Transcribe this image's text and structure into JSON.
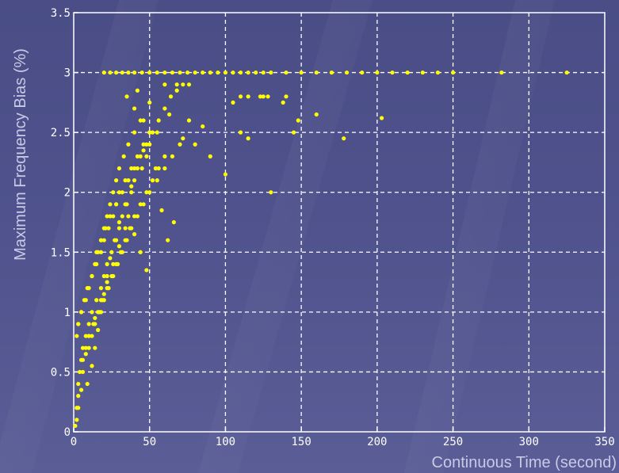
{
  "chart_data": {
    "type": "scatter",
    "title": "",
    "xlabel": "Continuous  Time (second)",
    "ylabel": "Maximum Frequency Bias (%)",
    "xlim": [
      0,
      350
    ],
    "ylim": [
      0,
      3.5
    ],
    "xticks": [
      0,
      50,
      100,
      150,
      200,
      250,
      300,
      350
    ],
    "yticks": [
      0,
      0.5,
      1,
      1.5,
      2,
      2.5,
      3,
      3.5
    ],
    "xtick_labels": [
      "0",
      "50",
      "100",
      "150",
      "200",
      "250",
      "300",
      "350"
    ],
    "ytick_labels": [
      "0",
      "0.5",
      "1",
      "1.5",
      "2",
      "2.5",
      "3",
      "3.5"
    ],
    "grid": true,
    "colors": {
      "points": "#ffff00",
      "grid": "#ffffff",
      "axes": "#ffffff"
    },
    "series": [
      {
        "x": [
          1,
          2,
          2,
          3,
          3,
          4,
          5,
          6,
          8,
          10,
          12,
          15,
          18,
          20,
          22,
          25,
          28,
          30,
          32,
          35,
          38,
          40,
          45,
          48,
          50,
          2,
          3,
          5,
          7,
          9,
          12,
          14,
          16,
          18,
          20,
          22,
          24,
          26,
          28,
          30,
          33,
          36,
          40,
          44,
          3,
          5,
          8,
          10,
          12,
          15,
          18,
          20,
          23,
          26,
          28,
          30,
          34,
          38,
          42,
          46,
          50,
          6,
          8,
          10,
          13,
          16,
          19,
          22,
          25,
          28,
          31,
          34,
          37,
          40,
          44,
          48,
          52,
          56,
          60,
          10,
          12,
          14,
          17,
          20,
          23,
          26,
          29,
          32,
          35,
          38,
          42,
          46,
          50,
          55,
          60,
          65,
          70,
          15,
          18,
          21,
          24,
          28,
          32,
          36,
          40,
          44,
          48,
          52,
          56,
          60,
          64,
          68,
          72,
          76,
          20,
          24,
          28,
          32,
          36,
          40,
          45,
          50,
          55,
          60,
          65,
          70,
          75,
          80,
          85,
          90,
          95,
          100,
          105,
          110,
          115,
          120,
          125,
          130,
          140,
          150,
          160,
          170,
          180,
          190,
          200,
          210,
          220,
          230,
          240,
          250,
          282,
          325,
          35,
          40,
          42,
          46,
          50,
          55,
          60,
          63,
          68,
          72,
          76,
          80,
          85,
          90,
          105,
          110,
          115,
          123,
          125,
          128,
          138,
          140,
          9,
          12,
          14,
          16,
          18,
          20,
          22,
          24,
          27,
          30,
          34,
          38,
          42,
          46,
          50,
          54,
          58,
          62,
          66,
          100,
          110,
          115,
          130,
          145,
          148,
          160,
          178,
          203,
          3,
          5,
          6,
          8,
          10,
          14,
          18,
          22,
          26,
          30,
          34,
          36,
          40,
          44,
          48
        ],
        "y": [
          0.05,
          0.1,
          0.2,
          0.3,
          0.4,
          0.5,
          0.6,
          0.7,
          0.8,
          0.9,
          1.0,
          1.1,
          1.2,
          1.3,
          1.4,
          1.5,
          1.6,
          1.7,
          1.8,
          1.9,
          2.0,
          2.1,
          2.2,
          2.3,
          2.4,
          0.8,
          0.9,
          1.0,
          1.1,
          1.2,
          1.3,
          1.4,
          1.5,
          1.6,
          1.7,
          1.8,
          1.9,
          2.0,
          2.1,
          2.2,
          2.3,
          2.4,
          2.5,
          2.6,
          0.9,
          1.0,
          1.1,
          1.2,
          1.3,
          1.4,
          1.5,
          1.6,
          1.7,
          1.8,
          1.9,
          2.0,
          2.1,
          2.2,
          2.3,
          2.4,
          2.5,
          0.6,
          0.7,
          0.8,
          0.9,
          1.0,
          1.1,
          1.2,
          1.3,
          1.4,
          1.5,
          1.6,
          1.7,
          1.8,
          1.9,
          2.0,
          2.1,
          2.2,
          2.3,
          0.7,
          0.8,
          0.9,
          1.0,
          1.1,
          1.2,
          1.3,
          1.4,
          1.5,
          1.6,
          1.7,
          1.8,
          1.9,
          2.0,
          2.1,
          2.2,
          2.3,
          2.4,
          1.5,
          1.6,
          1.7,
          1.8,
          1.9,
          2.0,
          2.1,
          2.2,
          2.3,
          2.4,
          2.5,
          2.6,
          2.7,
          2.8,
          2.9,
          2.9,
          2.9,
          3.0,
          3.0,
          3.0,
          3.0,
          3.0,
          3.0,
          3.0,
          3.0,
          3.0,
          3.0,
          3.0,
          3.0,
          3.0,
          3.0,
          3.0,
          3.0,
          3.0,
          3.0,
          3.0,
          3.0,
          3.0,
          3.0,
          3.0,
          3.0,
          3.0,
          3.0,
          3.0,
          3.0,
          3.0,
          3.0,
          3.0,
          3.0,
          3.0,
          3.0,
          3.0,
          3.0,
          3.0,
          3.0,
          2.8,
          2.7,
          2.85,
          2.6,
          2.75,
          2.5,
          2.9,
          2.65,
          2.85,
          2.45,
          2.6,
          2.4,
          2.55,
          2.3,
          2.75,
          2.8,
          2.8,
          2.8,
          2.8,
          2.8,
          2.75,
          2.8,
          0.4,
          0.55,
          0.7,
          0.85,
          1.0,
          1.15,
          1.3,
          1.45,
          1.6,
          1.75,
          1.9,
          2.05,
          2.2,
          2.35,
          2.5,
          2.2,
          1.85,
          1.6,
          1.75,
          2.15,
          2.5,
          2.45,
          2.0,
          2.5,
          2.6,
          2.65,
          2.45,
          2.62,
          0.2,
          0.35,
          0.5,
          0.65,
          0.8,
          0.95,
          1.1,
          1.25,
          1.4,
          1.55,
          1.7,
          1.8,
          1.65,
          1.5,
          1.35
        ]
      }
    ]
  }
}
